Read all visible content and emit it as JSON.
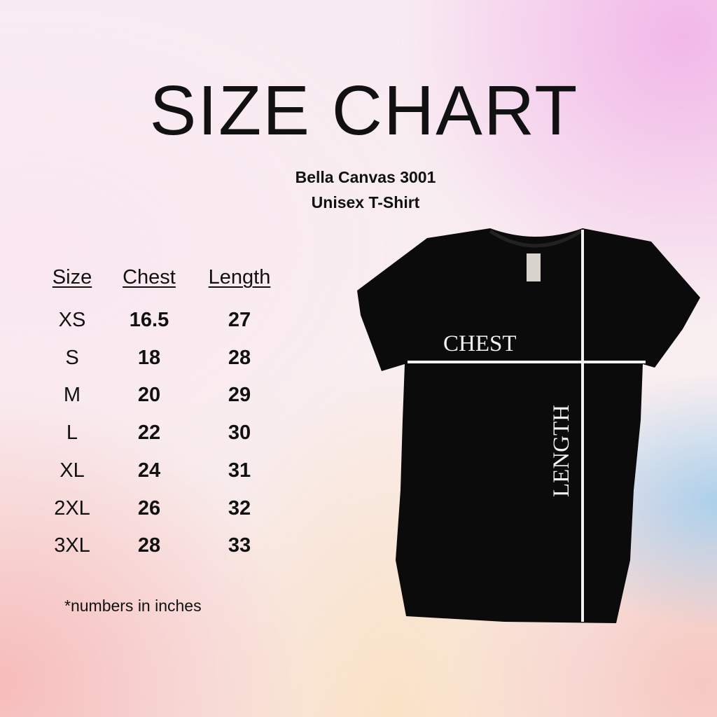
{
  "title": "SIZE CHART",
  "subtitle_line1": "Bella Canvas 3001",
  "subtitle_line2": "Unisex T-Shirt",
  "table": {
    "headers": [
      "Size",
      "Chest",
      "Length"
    ],
    "rows": [
      [
        "XS",
        "16.5",
        "27"
      ],
      [
        "S",
        "18",
        "28"
      ],
      [
        "M",
        "20",
        "29"
      ],
      [
        "L",
        "22",
        "30"
      ],
      [
        "XL",
        "24",
        "31"
      ],
      [
        "2XL",
        "26",
        "32"
      ],
      [
        "3XL",
        "28",
        "33"
      ]
    ]
  },
  "footnote": "*numbers in inches",
  "shirt": {
    "chest_label": "CHEST",
    "length_label": "LENGTH",
    "color": "#0b0b0b",
    "line_color": "#f2f2f2"
  }
}
